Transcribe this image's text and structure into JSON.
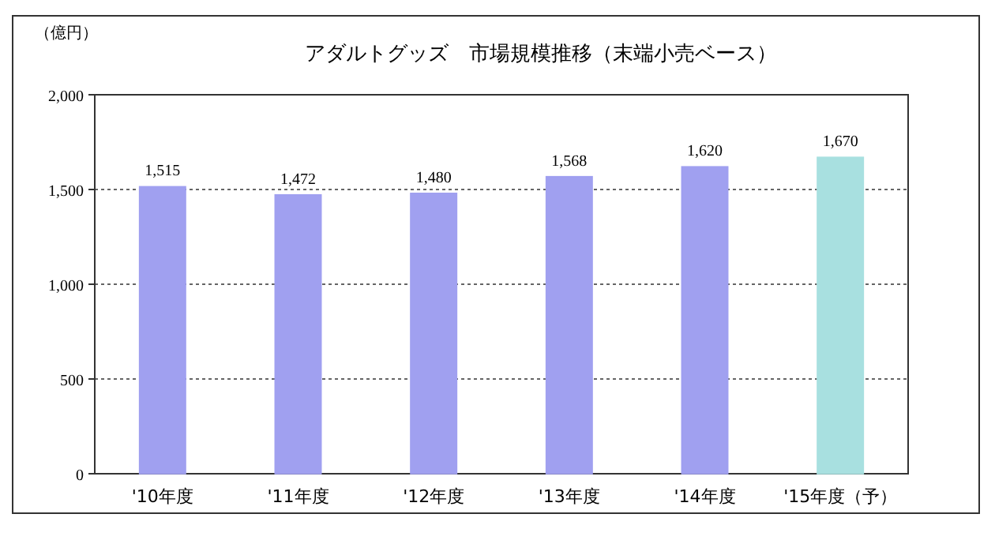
{
  "chart_data": {
    "type": "bar",
    "title": "アダルトグッズ　市場規模推移（末端小売ベース）",
    "ylabel": "（億円）",
    "categories": [
      "'10年度",
      "'11年度",
      "'12年度",
      "'13年度",
      "'14年度",
      "'15年度（予）"
    ],
    "values": [
      1515,
      1472,
      1480,
      1568,
      1620,
      1670
    ],
    "colors": [
      "#a0a0f0",
      "#a0a0f0",
      "#a0a0f0",
      "#a0a0f0",
      "#a0a0f0",
      "#a8e0e0"
    ],
    "value_labels": [
      "1,515",
      "1,472",
      "1,480",
      "1,568",
      "1,620",
      "1,670"
    ],
    "ylim": [
      0,
      2000
    ],
    "yticks": [
      {
        "value": 0,
        "label": "0"
      },
      {
        "value": 500,
        "label": "500"
      },
      {
        "value": 1000,
        "label": "1,000"
      },
      {
        "value": 1500,
        "label": "1,500"
      },
      {
        "value": 2000,
        "label": "2,000"
      }
    ],
    "grid": "y"
  }
}
